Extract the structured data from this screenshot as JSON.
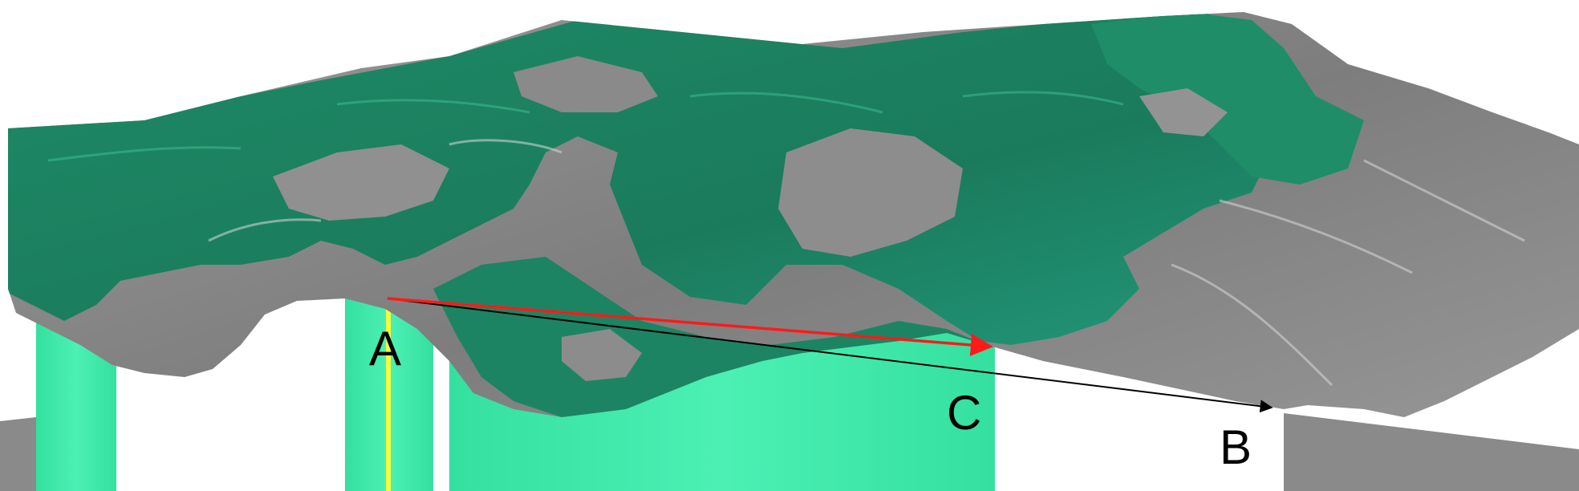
{
  "labels": {
    "a": "A",
    "b": "B",
    "c": "C"
  },
  "colors": {
    "green_surface": "#1f8e69",
    "gray_surface": "#8a8a8a",
    "light_green_wall": "#3ee6a4",
    "arrow_red": "#ff1a1a",
    "arrow_black": "#000000",
    "marker_yellow": "#f5ff3a"
  }
}
